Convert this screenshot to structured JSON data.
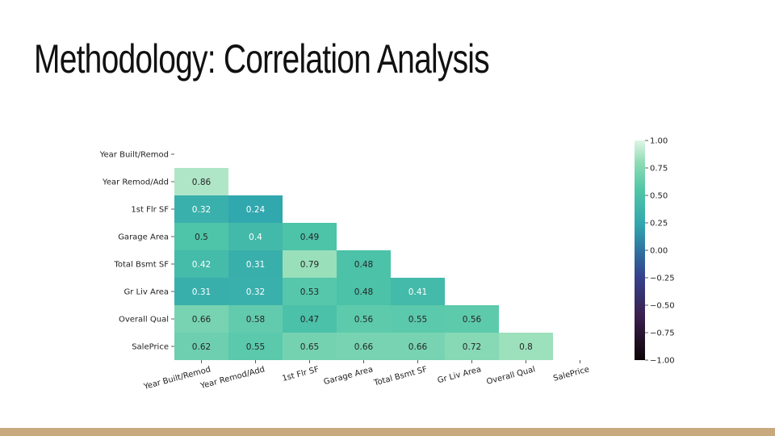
{
  "slide": {
    "title": "Methodology: Correlation Analysis",
    "accent_color": "#c8a97e"
  },
  "chart_data": {
    "type": "heatmap",
    "title": "",
    "variables": [
      "Year Built/Remod",
      "Year Remod/Add",
      "1st Flr SF",
      "Garage Area",
      "Total Bsmt SF",
      "Gr Liv Area",
      "Overall Qual",
      "SalePrice"
    ],
    "mask": "upper-triangle-including-diagonal",
    "values": [
      [
        null,
        null,
        null,
        null,
        null,
        null,
        null,
        null
      ],
      [
        0.86,
        null,
        null,
        null,
        null,
        null,
        null,
        null
      ],
      [
        0.32,
        0.24,
        null,
        null,
        null,
        null,
        null,
        null
      ],
      [
        0.5,
        0.4,
        0.49,
        null,
        null,
        null,
        null,
        null
      ],
      [
        0.42,
        0.31,
        0.79,
        0.48,
        null,
        null,
        null,
        null
      ],
      [
        0.31,
        0.32,
        0.53,
        0.48,
        0.41,
        null,
        null,
        null
      ],
      [
        0.66,
        0.58,
        0.47,
        0.56,
        0.55,
        0.56,
        null,
        null
      ],
      [
        0.62,
        0.55,
        0.65,
        0.66,
        0.66,
        0.72,
        0.8,
        null
      ]
    ],
    "colorbar": {
      "range": [
        -1,
        1
      ],
      "ticks": [
        "1.00",
        "0.75",
        "0.50",
        "0.25",
        "0.00",
        "−0.25",
        "−0.50",
        "−0.75",
        "−1.00"
      ],
      "colormap": "mako-like (black → blue → teal → light green)"
    }
  }
}
